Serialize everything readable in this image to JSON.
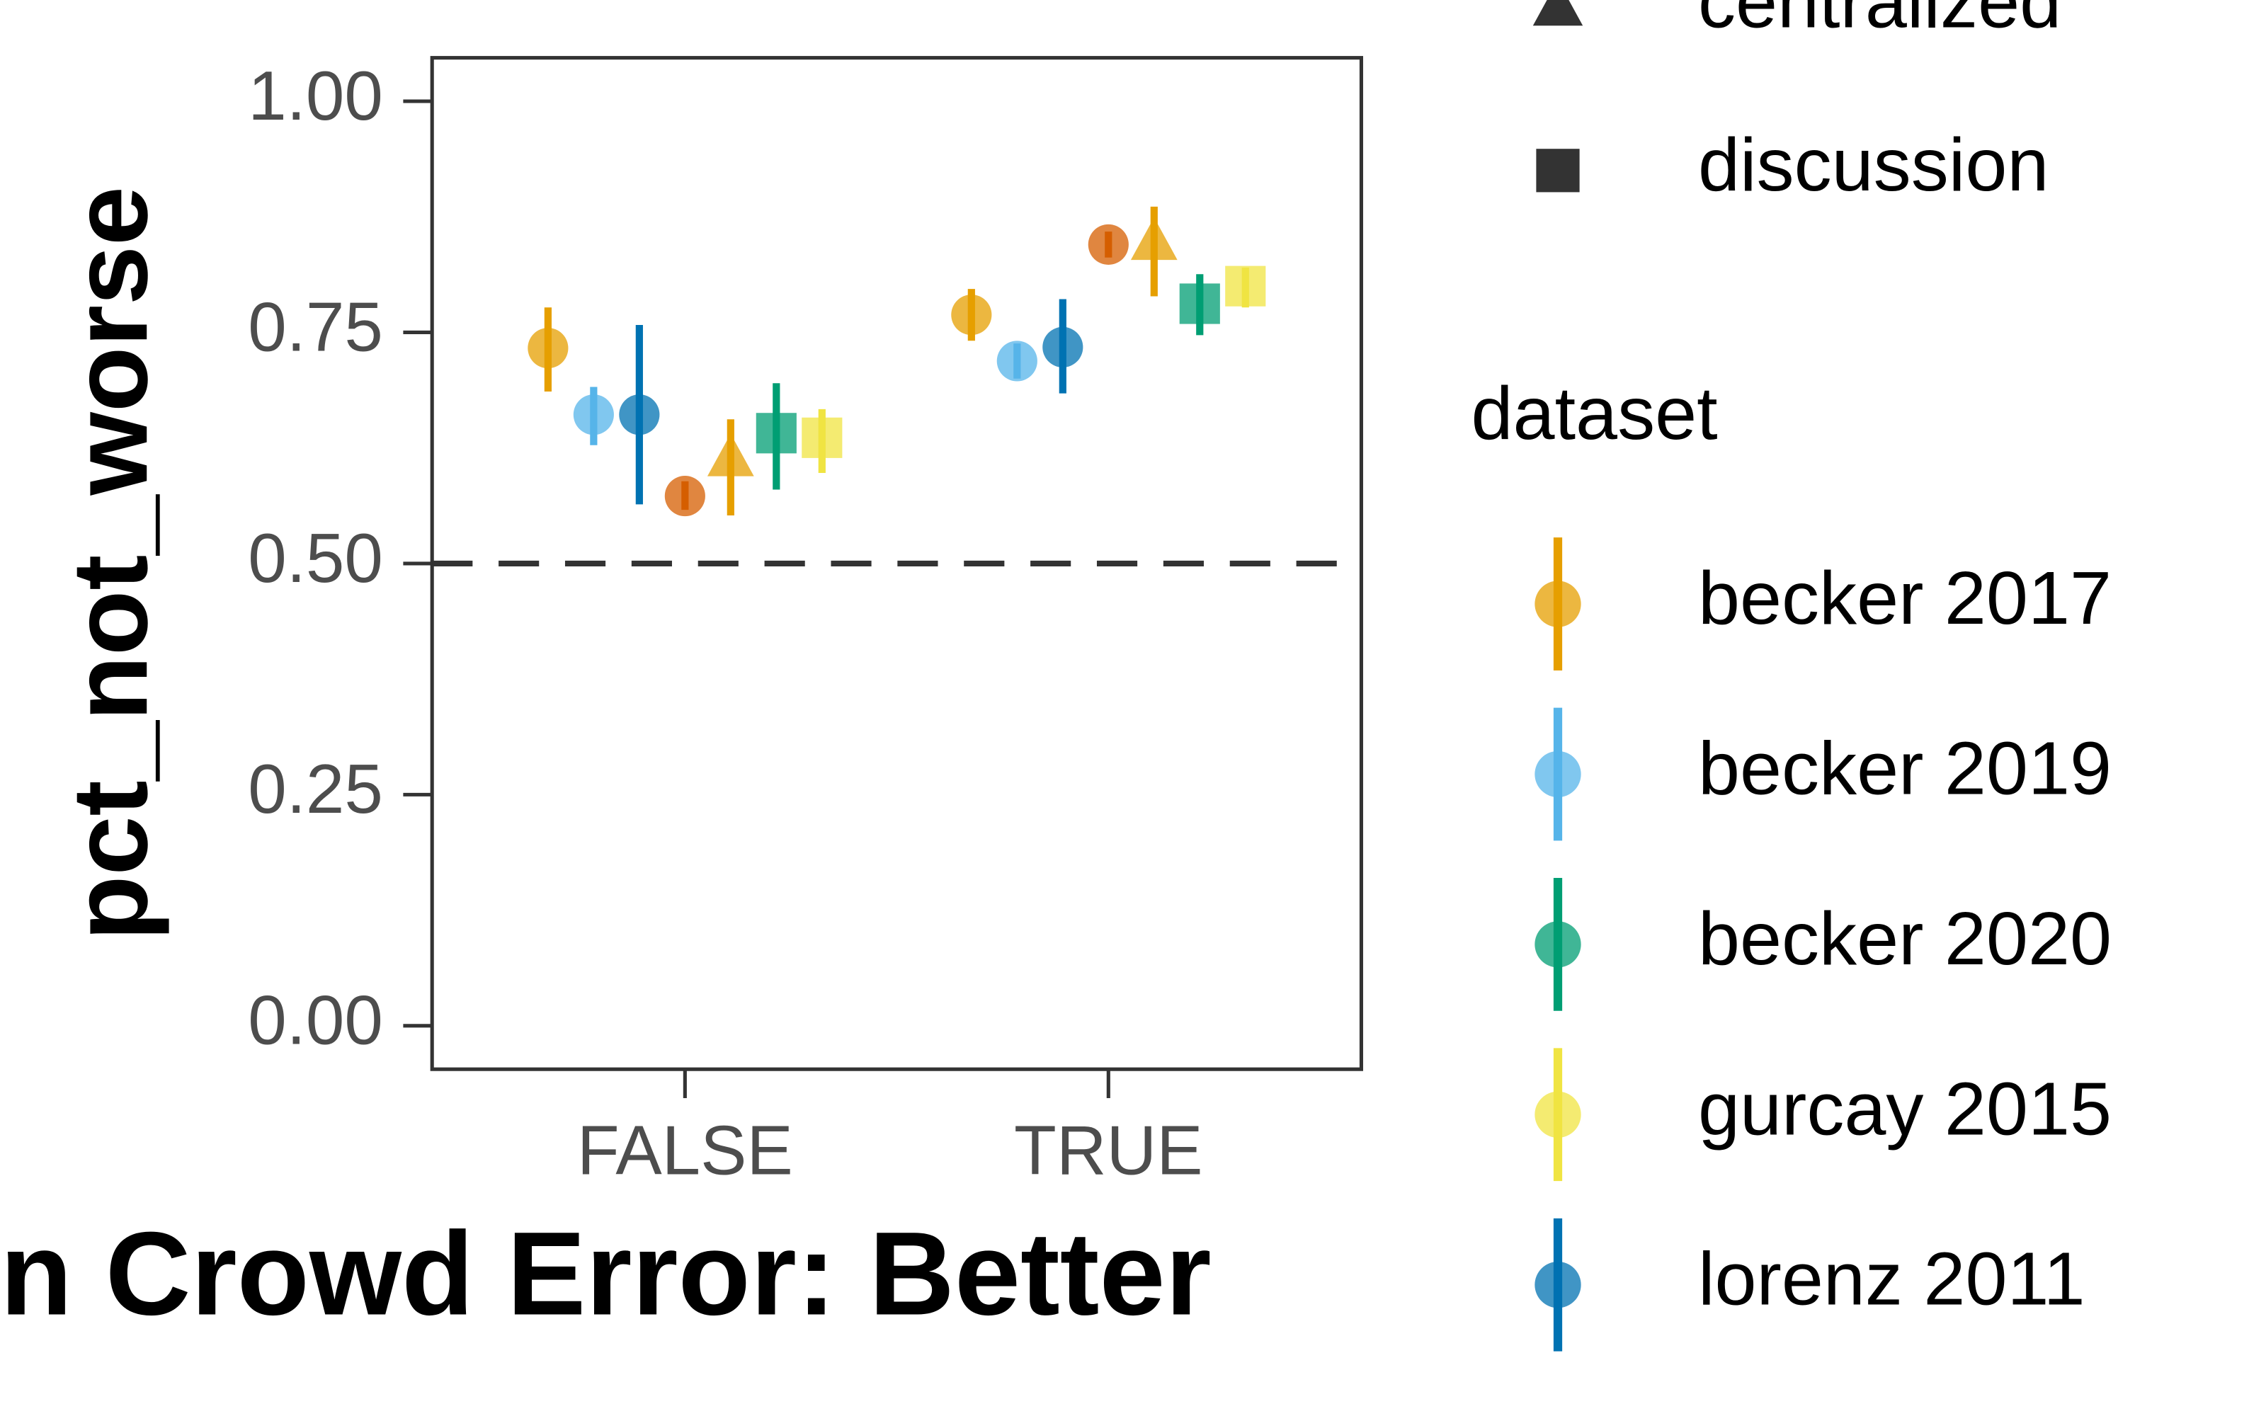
{
  "chart_data": {
    "type": "pointrange",
    "x_label": "n Crowd Error: Better",
    "y_label": "pct_not_worse",
    "categories": [
      "FALSE",
      "TRUE"
    ],
    "ylim": [
      -0.047,
      1.047
    ],
    "yticks": [
      {
        "value": 0,
        "label": "0.00"
      },
      {
        "value": 0.25,
        "label": "0.25"
      },
      {
        "value": 0.5,
        "label": "0.50"
      },
      {
        "value": 0.75,
        "label": "0.75"
      },
      {
        "value": 1,
        "label": "1.00"
      }
    ],
    "hline": 0.5,
    "series": [
      {
        "color": "#E69F00",
        "shape": "circle",
        "values": [
          0.733,
          0.769
        ],
        "lower": [
          0.686,
          0.741
        ],
        "upper": [
          0.777,
          0.797
        ]
      },
      {
        "color": "#56B4E9",
        "shape": "circle",
        "values": [
          0.661,
          0.719
        ],
        "lower": [
          0.628,
          0.7
        ],
        "upper": [
          0.691,
          0.738
        ]
      },
      {
        "color": "#0072B2",
        "shape": "circle",
        "values": [
          0.661,
          0.734
        ],
        "lower": [
          0.564,
          0.684
        ],
        "upper": [
          0.758,
          0.786
        ]
      },
      {
        "color": "#D55E00",
        "shape": "circle",
        "values": [
          0.573,
          0.845
        ],
        "lower": [
          0.558,
          0.831
        ],
        "upper": [
          0.589,
          0.859
        ]
      },
      {
        "color": "#E69F00",
        "shape": "triangle",
        "values": [
          0.613,
          0.847
        ],
        "lower": [
          0.552,
          0.789
        ],
        "upper": [
          0.656,
          0.886
        ]
      },
      {
        "color": "#009E73",
        "shape": "square",
        "values": [
          0.641,
          0.781
        ],
        "lower": [
          0.58,
          0.747
        ],
        "upper": [
          0.695,
          0.813
        ]
      },
      {
        "color": "#F0E442",
        "shape": "square",
        "values": [
          0.636,
          0.8
        ],
        "lower": [
          0.598,
          0.777
        ],
        "upper": [
          0.667,
          0.82
        ]
      }
    ],
    "shape_legend": [
      {
        "label": "centralized",
        "shape": "triangle"
      },
      {
        "label": "discussion",
        "shape": "square"
      }
    ],
    "color_legend": {
      "title": "dataset",
      "items": [
        {
          "label": "becker 2017",
          "color": "#E69F00"
        },
        {
          "label": "becker 2019",
          "color": "#56B4E9"
        },
        {
          "label": "becker 2020",
          "color": "#009E73"
        },
        {
          "label": "gurcay 2015",
          "color": "#F0E442"
        },
        {
          "label": "lorenz 2011",
          "color": "#0072B2"
        }
      ]
    }
  }
}
